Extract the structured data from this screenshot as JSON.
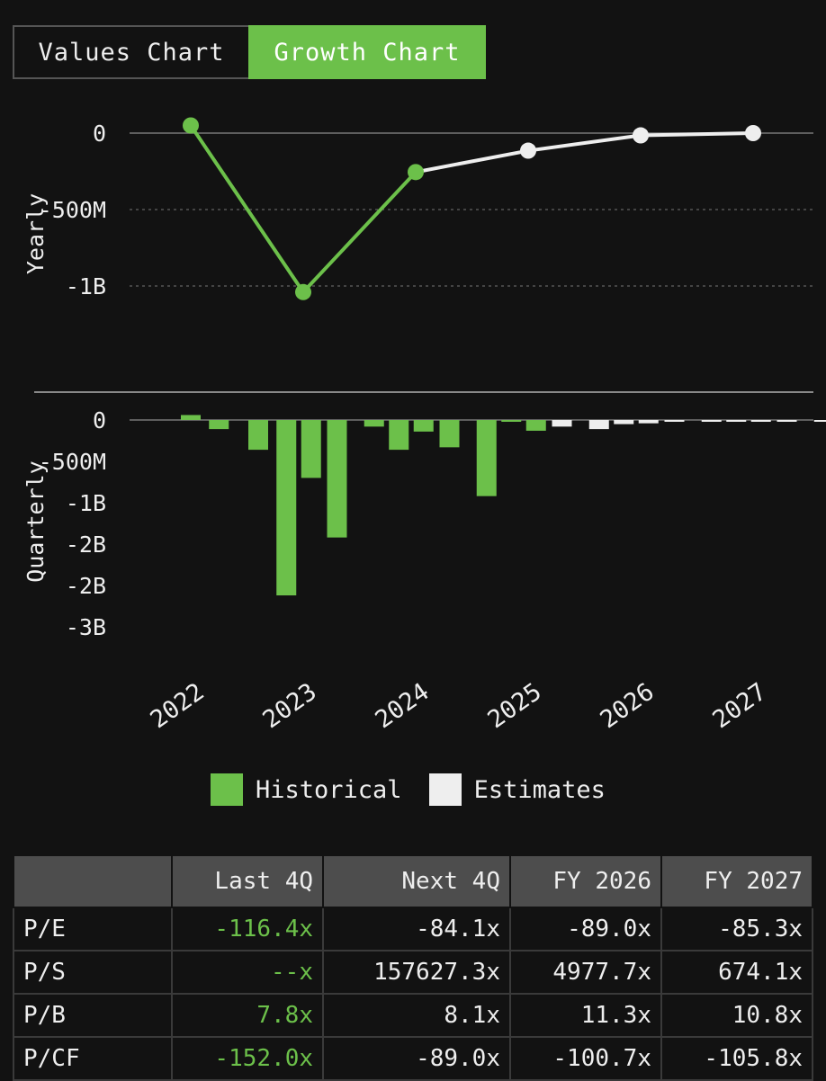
{
  "tabs": {
    "values_label": "Values Chart",
    "growth_label": "Growth Chart"
  },
  "colors": {
    "historical": "#6cc04a",
    "estimates": "#eeeeee",
    "background": "#121212",
    "header_bg": "#4d4d4d"
  },
  "chart_data": [
    {
      "type": "line",
      "ylabel": "Yearly",
      "yticks": [
        {
          "v": 0,
          "label": "0"
        },
        {
          "v": -500000000,
          "label": "-500M"
        },
        {
          "v": -1000000000,
          "label": "-1B"
        }
      ],
      "ylim": [
        -1300000000,
        100000000
      ],
      "series": [
        {
          "points": [
            {
              "x": 2022,
              "y": 50000000
            },
            {
              "x": 2023,
              "y": -1040000000
            },
            {
              "x": 2024,
              "y": -255000000
            }
          ]
        },
        {
          "points": [
            {
              "x": 2024,
              "y": -255000000
            },
            {
              "x": 2025,
              "y": -115000000
            },
            {
              "x": 2026,
              "y": -15000000
            },
            {
              "x": 2027,
              "y": 0
            }
          ]
        }
      ]
    },
    {
      "type": "bar",
      "ylabel": "Quarterly",
      "yticks": [
        {
          "v": 0,
          "label": "0"
        },
        {
          "v": -500000000,
          "label": "-500M"
        },
        {
          "v": -1000000000,
          "label": "-1B"
        },
        {
          "v": -1500000000,
          "label": "-2B"
        },
        {
          "v": -2000000000,
          "label": "-2B"
        },
        {
          "v": -2500000000,
          "label": "-3B"
        }
      ],
      "bars": [
        {
          "x": 2022.0,
          "y": 60000000,
          "kind": "historical"
        },
        {
          "x": 2022.25,
          "y": -110000000,
          "kind": "historical"
        },
        {
          "x": 2022.6,
          "y": -360000000,
          "kind": "historical"
        },
        {
          "x": 2022.85,
          "y": -2120000000,
          "kind": "historical"
        },
        {
          "x": 2023.07,
          "y": -700000000,
          "kind": "historical"
        },
        {
          "x": 2023.3,
          "y": -1420000000,
          "kind": "historical"
        },
        {
          "x": 2023.63,
          "y": -80000000,
          "kind": "historical"
        },
        {
          "x": 2023.85,
          "y": -360000000,
          "kind": "historical"
        },
        {
          "x": 2024.07,
          "y": -140000000,
          "kind": "historical"
        },
        {
          "x": 2024.3,
          "y": -330000000,
          "kind": "historical"
        },
        {
          "x": 2024.63,
          "y": -920000000,
          "kind": "historical"
        },
        {
          "x": 2024.85,
          "y": -15000000,
          "kind": "historical"
        },
        {
          "x": 2025.07,
          "y": -130000000,
          "kind": "historical"
        },
        {
          "x": 2025.3,
          "y": -80000000,
          "kind": "estimates"
        },
        {
          "x": 2025.63,
          "y": -110000000,
          "kind": "estimates"
        },
        {
          "x": 2025.85,
          "y": -50000000,
          "kind": "estimates"
        },
        {
          "x": 2026.07,
          "y": -40000000,
          "kind": "estimates"
        },
        {
          "x": 2026.3,
          "y": -15000000,
          "kind": "estimates"
        },
        {
          "x": 2026.63,
          "y": -10000000,
          "kind": "estimates"
        },
        {
          "x": 2026.85,
          "y": -8000000,
          "kind": "estimates"
        },
        {
          "x": 2027.07,
          "y": -8000000,
          "kind": "estimates"
        },
        {
          "x": 2027.3,
          "y": -8000000,
          "kind": "estimates"
        },
        {
          "x": 2027.63,
          "y": -8000000,
          "kind": "estimates"
        },
        {
          "x": 2027.85,
          "y": -8000000,
          "kind": "estimates"
        }
      ]
    }
  ],
  "xticks": [
    "2022",
    "2023",
    "2024",
    "2025",
    "2026",
    "2027"
  ],
  "legend": {
    "historical": "Historical",
    "estimates": "Estimates"
  },
  "table": {
    "headers": [
      "",
      "Last 4Q",
      "Next 4Q",
      "FY 2026",
      "FY 2027"
    ],
    "rows": [
      [
        "P/E",
        "-116.4x",
        "-84.1x",
        "-89.0x",
        "-85.3x"
      ],
      [
        "P/S",
        "--x",
        "157627.3x",
        "4977.7x",
        "674.1x"
      ],
      [
        "P/B",
        "7.8x",
        "8.1x",
        "11.3x",
        "10.8x"
      ],
      [
        "P/CF",
        "-152.0x",
        "-89.0x",
        "-100.7x",
        "-105.8x"
      ]
    ]
  }
}
